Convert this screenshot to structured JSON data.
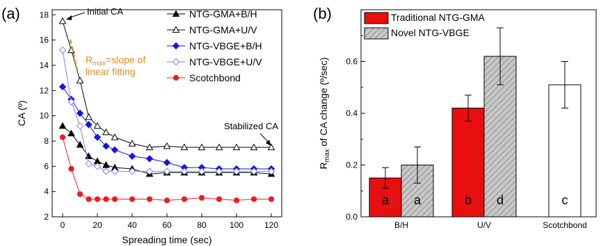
{
  "chart_data": [
    {
      "type": "line",
      "panel_label": "(a)",
      "xlabel": "Spreading time (sec)",
      "ylabel": "CA (º)",
      "xlim": [
        -6,
        126
      ],
      "ylim": [
        2,
        18.4
      ],
      "xticks": [
        0,
        20,
        40,
        60,
        80,
        100,
        120
      ],
      "yticks": [
        2,
        4,
        6,
        8,
        10,
        12,
        14,
        16,
        18
      ],
      "legend_position": "top-right",
      "series": [
        {
          "name": "NTG-GMA+B/H",
          "color": "#000000",
          "marker": "triangle",
          "filled": true,
          "x": [
            0,
            5,
            10,
            15,
            20,
            25,
            30,
            40,
            50,
            60,
            70,
            80,
            90,
            100,
            110,
            120
          ],
          "y": [
            9.2,
            8.6,
            7.7,
            6.8,
            6.4,
            6.1,
            5.9,
            5.8,
            5.4,
            5.5,
            5.5,
            5.5,
            5.5,
            5.5,
            5.5,
            5.4
          ]
        },
        {
          "name": "NTG-GMA+U/V",
          "color": "#000000",
          "marker": "triangle",
          "filled": false,
          "x": [
            0,
            5,
            10,
            15,
            20,
            25,
            30,
            40,
            50,
            60,
            70,
            80,
            90,
            100,
            110,
            120
          ],
          "y": [
            17.5,
            15.2,
            12.8,
            9.9,
            9.2,
            8.7,
            8.3,
            7.8,
            7.5,
            7.6,
            7.5,
            7.5,
            7.5,
            7.5,
            7.5,
            7.5
          ]
        },
        {
          "name": "NTG-VBGE+B/H",
          "color": "#1414e6",
          "marker": "diamond",
          "filled": true,
          "x": [
            0,
            5,
            10,
            15,
            20,
            25,
            30,
            40,
            50,
            60,
            70,
            80,
            90,
            100,
            110,
            120
          ],
          "y": [
            12.3,
            11.3,
            10.2,
            9.3,
            8.3,
            7.6,
            7.3,
            6.8,
            6.6,
            6.3,
            5.9,
            5.9,
            5.8,
            5.8,
            5.8,
            5.8
          ]
        },
        {
          "name": "NTG-VBGE+U/V",
          "color": "#8080ee",
          "marker": "diamond",
          "filled": false,
          "x": [
            0,
            5,
            10,
            15,
            20,
            25,
            30,
            40,
            50,
            60,
            70,
            80,
            90,
            100,
            110,
            120
          ],
          "y": [
            15.2,
            11.1,
            9.2,
            6.2,
            6.0,
            5.6,
            5.6,
            5.6,
            5.6,
            5.6,
            5.6,
            5.6,
            5.6,
            5.6,
            5.6,
            5.6
          ]
        },
        {
          "name": "Scotchbond",
          "color": "#ee1c1c",
          "marker": "circle",
          "filled": true,
          "x": [
            0,
            5,
            10,
            15,
            20,
            25,
            30,
            40,
            50,
            60,
            70,
            80,
            90,
            100,
            110,
            120
          ],
          "y": [
            8.3,
            5.8,
            3.8,
            3.4,
            3.4,
            3.4,
            3.4,
            3.4,
            3.4,
            3.3,
            3.4,
            3.5,
            3.4,
            3.3,
            3.4,
            3.4
          ]
        }
      ],
      "annotations": {
        "initial_ca": "Initial CA",
        "stabilized_ca": "Stabilized CA",
        "rmax_prefix": "R",
        "rmax_sub": "max",
        "rmax_suffix": "=slope of",
        "rmax_line2": "linear fitting"
      }
    },
    {
      "type": "bar",
      "panel_label": "(b)",
      "ylabel_prefix": "R",
      "ylabel_sub": "max",
      "ylabel_suffix": " of CA change (º/sec)",
      "ylim": [
        0,
        0.8
      ],
      "yticks": [
        "0.0",
        "0.2",
        "0.4",
        "0.6"
      ],
      "categories": [
        "B/H",
        "U/V",
        "Scotchbond"
      ],
      "legend_position": "top-left",
      "series": [
        {
          "name": "Traditional NTG-GMA",
          "color": "#ee1111",
          "pattern": "dots",
          "values": [
            0.15,
            0.42,
            null
          ],
          "errors": [
            0.04,
            0.05,
            null
          ],
          "letters": [
            "a",
            "b",
            ""
          ]
        },
        {
          "name": "Novel NTG-VBGE",
          "color": "#c8c8c8",
          "pattern": "hatch",
          "values": [
            0.2,
            0.62,
            null
          ],
          "errors": [
            0.07,
            0.11,
            null
          ],
          "letters": [
            "a",
            "d",
            ""
          ]
        }
      ],
      "extra_bar": {
        "category": "Scotchbond",
        "value": 0.51,
        "error": 0.09,
        "letter": "c",
        "color": "#ffffff"
      }
    }
  ]
}
